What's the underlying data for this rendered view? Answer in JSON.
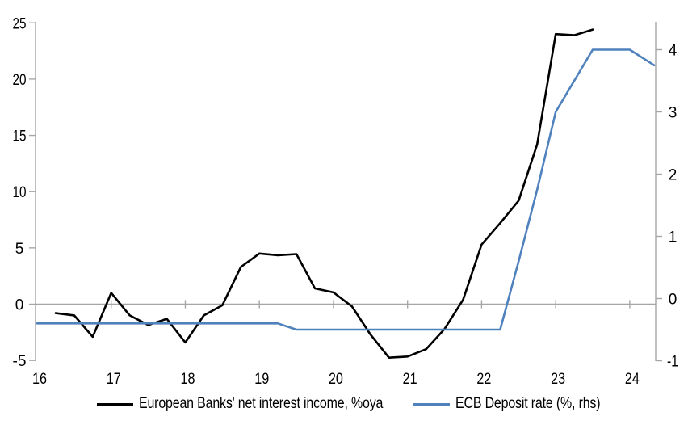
{
  "chart_data": {
    "type": "line",
    "title": "",
    "xlabel": "",
    "ylabel_left": "",
    "ylabel_right": "",
    "grid": "zero-line-only",
    "legend_position": "bottom",
    "x_axis": {
      "ticks": [
        16,
        17,
        18,
        19,
        20,
        21,
        22,
        23,
        24
      ],
      "tick_labels": [
        "16",
        "17",
        "18",
        "19",
        "20",
        "21",
        "22",
        "23",
        "24"
      ],
      "range": [
        16,
        24.35
      ]
    },
    "y_axis_left": {
      "ticks": [
        -5,
        0,
        5,
        10,
        15,
        20,
        25
      ],
      "tick_labels": [
        "-5",
        "0",
        "5",
        "10",
        "15",
        "20",
        "25"
      ],
      "range": [
        -5,
        25
      ]
    },
    "y_axis_right": {
      "ticks": [
        -1,
        0,
        1,
        2,
        3,
        4
      ],
      "tick_labels": [
        "-1",
        "0",
        "1",
        "2",
        "3",
        "4"
      ],
      "range": [
        -1,
        4.5
      ]
    },
    "series": [
      {
        "name": "European Banks' net interest income, %oya",
        "axis": "left",
        "color": "#000000",
        "x": [
          16.25,
          16.5,
          16.75,
          17.0,
          17.25,
          17.5,
          17.75,
          18.0,
          18.25,
          18.5,
          18.75,
          19.0,
          19.25,
          19.5,
          19.75,
          20.0,
          20.25,
          20.5,
          20.75,
          21.0,
          21.25,
          21.5,
          21.75,
          22.0,
          22.25,
          22.5,
          22.75,
          23.0,
          23.25,
          23.5
        ],
        "values": [
          -0.8,
          -1.0,
          -2.9,
          1.0,
          -1.0,
          -1.85,
          -1.3,
          -3.4,
          -1.0,
          -0.1,
          3.3,
          4.5,
          4.35,
          4.45,
          1.4,
          1.05,
          -0.2,
          -2.7,
          -4.75,
          -4.65,
          -4.0,
          -2.2,
          0.4,
          5.3,
          7.2,
          9.2,
          14.2,
          24.0,
          23.9,
          24.4
        ]
      },
      {
        "name": "ECB Deposit rate (%, rhs)",
        "axis": "right",
        "color": "#4F81BD",
        "x": [
          16.0,
          19.25,
          19.5,
          22.25,
          22.5,
          22.75,
          23.0,
          23.25,
          23.5,
          24.0,
          24.33
        ],
        "values": [
          -0.4,
          -0.4,
          -0.5,
          -0.5,
          0.6,
          1.75,
          3.0,
          3.5,
          4.0,
          4.0,
          3.75
        ]
      }
    ]
  },
  "legend": {
    "items": [
      {
        "label": "European Banks' net interest income, %oya",
        "color": "#000000"
      },
      {
        "label": "ECB Deposit rate (%, rhs)",
        "color": "#4F81BD"
      }
    ]
  },
  "colors": {
    "axis": "#A6A6A6",
    "zero_line": "#A6A6A6",
    "nii_line": "#000000",
    "deposit_rate_line": "#4F81BD",
    "background": "#FFFFFF"
  }
}
